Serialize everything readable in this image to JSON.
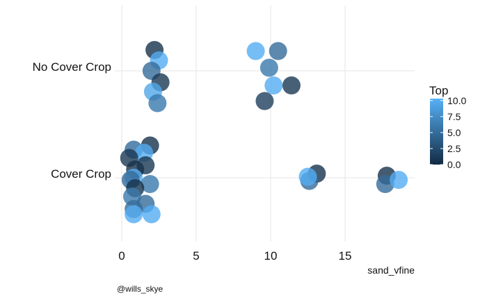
{
  "chart_data": {
    "type": "scatter",
    "xlabel": "sand_vfine",
    "ylabel": "",
    "xlim": [
      0,
      19.5
    ],
    "x_ticks": [
      "0",
      "5",
      "10",
      "15"
    ],
    "x_tick_values": [
      0,
      5,
      10,
      15
    ],
    "categories": [
      "No Cover Crop",
      "Cover Crop"
    ],
    "grid": true,
    "legend": {
      "title": "Top",
      "placement": "right",
      "labels": [
        "10.0",
        "7.5",
        "5.0",
        "2.5",
        "0.0"
      ],
      "label_values": [
        10,
        7.5,
        5,
        2.5,
        0
      ],
      "range": [
        0,
        10.3
      ],
      "color_low": "#132b43",
      "color_high": "#56b1f7"
    },
    "caption": "@wills_skye",
    "points": [
      {
        "category": "No Cover Crop",
        "x": 2.2,
        "jitter": 0.2,
        "top": 0.5
      },
      {
        "category": "No Cover Crop",
        "x": 2.5,
        "jitter": 0.1,
        "top": 10
      },
      {
        "category": "No Cover Crop",
        "x": 2.0,
        "jitter": 0.0,
        "top": 5
      },
      {
        "category": "No Cover Crop",
        "x": 2.6,
        "jitter": -0.11,
        "top": 1
      },
      {
        "category": "No Cover Crop",
        "x": 2.1,
        "jitter": -0.2,
        "top": 9.5
      },
      {
        "category": "No Cover Crop",
        "x": 2.4,
        "jitter": -0.31,
        "top": 6
      },
      {
        "category": "No Cover Crop",
        "x": 9.0,
        "jitter": 0.19,
        "top": 10
      },
      {
        "category": "No Cover Crop",
        "x": 10.5,
        "jitter": 0.19,
        "top": 5
      },
      {
        "category": "No Cover Crop",
        "x": 9.9,
        "jitter": 0.03,
        "top": 6
      },
      {
        "category": "No Cover Crop",
        "x": 10.2,
        "jitter": -0.14,
        "top": 10
      },
      {
        "category": "No Cover Crop",
        "x": 11.4,
        "jitter": -0.14,
        "top": 1
      },
      {
        "category": "No Cover Crop",
        "x": 9.6,
        "jitter": -0.29,
        "top": 1.5
      },
      {
        "category": "Cover Crop",
        "x": 1.9,
        "jitter": 0.31,
        "top": 0.5
      },
      {
        "category": "Cover Crop",
        "x": 0.8,
        "jitter": 0.27,
        "top": 5
      },
      {
        "category": "Cover Crop",
        "x": 1.5,
        "jitter": 0.24,
        "top": 10
      },
      {
        "category": "Cover Crop",
        "x": 0.5,
        "jitter": 0.19,
        "top": 1
      },
      {
        "category": "Cover Crop",
        "x": 1.6,
        "jitter": 0.12,
        "top": 1
      },
      {
        "category": "Cover Crop",
        "x": 0.9,
        "jitter": 0.08,
        "top": 0.5
      },
      {
        "category": "Cover Crop",
        "x": 0.8,
        "jitter": 0.0,
        "top": 10
      },
      {
        "category": "Cover Crop",
        "x": 0.6,
        "jitter": -0.02,
        "top": 5
      },
      {
        "category": "Cover Crop",
        "x": 1.9,
        "jitter": -0.06,
        "top": 6
      },
      {
        "category": "Cover Crop",
        "x": 0.9,
        "jitter": -0.1,
        "top": 0.5
      },
      {
        "category": "Cover Crop",
        "x": 0.7,
        "jitter": -0.18,
        "top": 6
      },
      {
        "category": "Cover Crop",
        "x": 1.6,
        "jitter": -0.25,
        "top": 5
      },
      {
        "category": "Cover Crop",
        "x": 0.8,
        "jitter": -0.3,
        "top": 5
      },
      {
        "category": "Cover Crop",
        "x": 0.8,
        "jitter": -0.35,
        "top": 10
      },
      {
        "category": "Cover Crop",
        "x": 2.0,
        "jitter": -0.35,
        "top": 10
      },
      {
        "category": "Cover Crop",
        "x": 13.1,
        "jitter": 0.04,
        "top": 0.5
      },
      {
        "category": "Cover Crop",
        "x": 12.6,
        "jitter": -0.03,
        "top": 5
      },
      {
        "category": "Cover Crop",
        "x": 12.5,
        "jitter": 0.01,
        "top": 10
      },
      {
        "category": "Cover Crop",
        "x": 17.8,
        "jitter": 0.02,
        "top": 0.5
      },
      {
        "category": "Cover Crop",
        "x": 17.7,
        "jitter": -0.06,
        "top": 5
      },
      {
        "category": "Cover Crop",
        "x": 18.6,
        "jitter": -0.02,
        "top": 10
      }
    ]
  }
}
